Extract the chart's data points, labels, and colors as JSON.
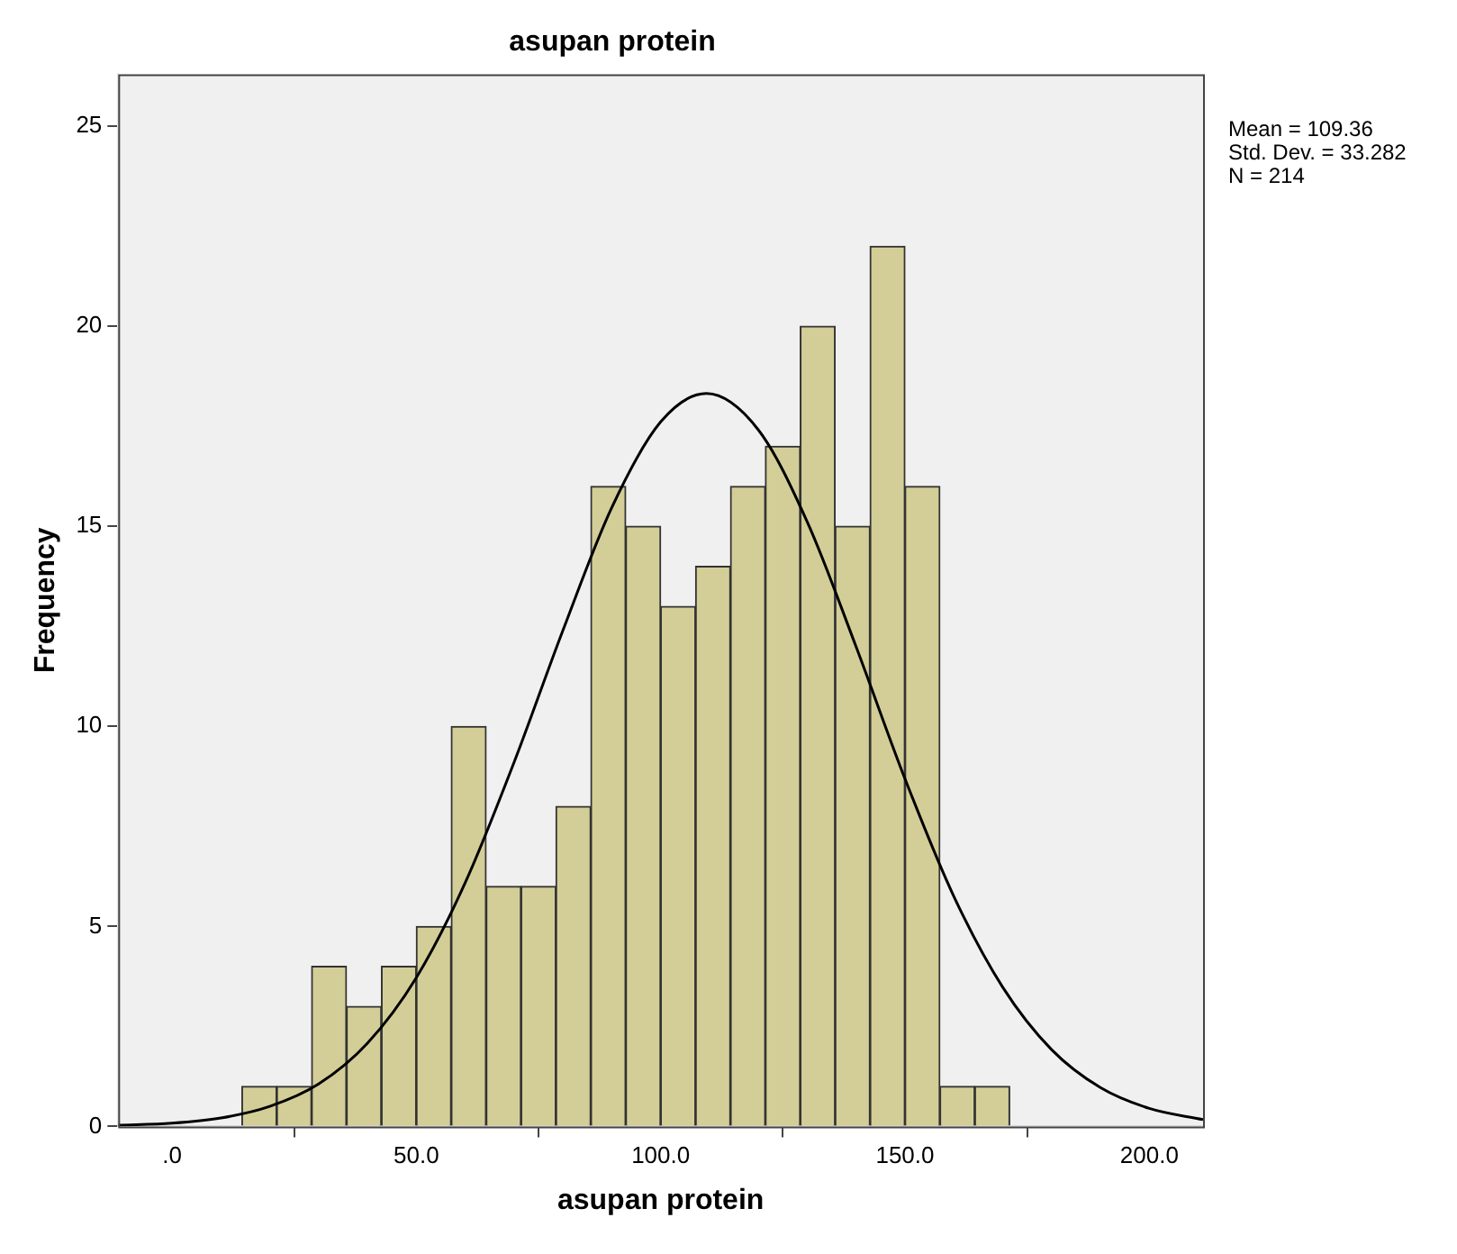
{
  "chart_data": {
    "type": "histogram",
    "title": "asupan protein",
    "xlabel": "asupan protein",
    "ylabel": "Frequency",
    "bins": [
      14.29,
      21.43,
      28.57,
      35.71,
      42.86,
      50.0,
      57.14,
      64.29,
      71.43,
      78.57,
      85.71,
      92.86,
      100.0,
      107.14,
      114.29,
      121.43,
      128.57,
      135.71,
      142.86,
      150.0,
      157.14,
      164.29,
      171.43
    ],
    "series": [
      {
        "color": "#d3ce97",
        "values": [
          1,
          1,
          4,
          3,
          4,
          5,
          10,
          6,
          6,
          8,
          16,
          15,
          13,
          14,
          16,
          17,
          20,
          15,
          22,
          16,
          1,
          1
        ]
      },
      {
        "type": "line",
        "color": "#000000",
        "marker": "none",
        "x": [
          -11,
          0,
          10,
          20,
          30,
          40,
          50,
          60,
          70,
          80,
          90,
          100,
          109.36,
          120,
          130,
          140,
          150,
          160,
          170,
          180,
          190,
          200,
          211
        ],
        "values": [
          0.03,
          0.08,
          0.21,
          0.5,
          1.06,
          2.08,
          3.72,
          6.09,
          9.1,
          12.4,
          15.47,
          17.61,
          18.32,
          17.41,
          15.11,
          11.99,
          8.69,
          5.75,
          3.48,
          1.92,
          0.97,
          0.45,
          0.17
        ]
      }
    ],
    "xlim": [
      -11,
      211
    ],
    "xticks": [
      {
        "value": 0,
        "label": ".0"
      },
      {
        "value": 50,
        "label": "50.0"
      },
      {
        "value": 100,
        "label": "100.0"
      },
      {
        "value": 150,
        "label": "150.0"
      },
      {
        "value": 200,
        "label": "200.0"
      }
    ],
    "ylim": [
      0,
      26.3
    ],
    "yticks": [
      0,
      5,
      10,
      15,
      20,
      25
    ],
    "grid": false,
    "legend": false,
    "annotations": [
      "Mean = 109.36",
      "Std. Dev. = 33.282",
      "N = 214"
    ]
  }
}
